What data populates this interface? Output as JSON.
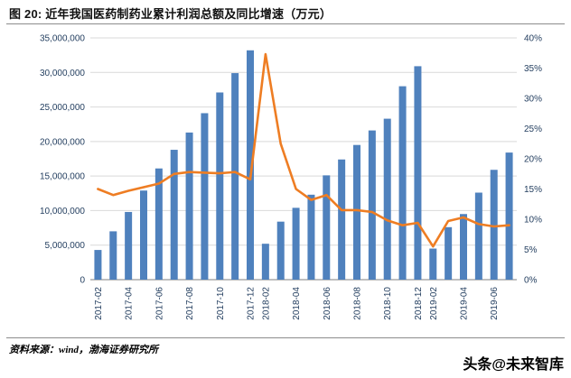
{
  "header": {
    "title": "图 20: 近年我国医药制药业累计利润总额及同比增速（万元）"
  },
  "footer": {
    "source": "资料来源：wind，渤海证券研究所",
    "watermark": "头条@未来智库"
  },
  "colors": {
    "bar": "#4f81bd",
    "line": "#ee7d23",
    "grid": "#d9d9d9",
    "axis_line": "#7f7f7f",
    "axis_text": "#243f60",
    "title_text": "#111111"
  },
  "chart_data": {
    "type": "combo_bar_line",
    "title": "近年我国医药制药业累计利润总额及同比增速（万元）",
    "categories": [
      "2017-02",
      "2017-03",
      "2017-04",
      "2017-05",
      "2017-06",
      "2017-07",
      "2017-08",
      "2017-09",
      "2017-10",
      "2017-11",
      "2017-12",
      "2018-02",
      "2018-03",
      "2018-04",
      "2018-05",
      "2018-06",
      "2018-07",
      "2018-08",
      "2018-09",
      "2018-10",
      "2018-11",
      "2018-12",
      "2019-02",
      "2019-03",
      "2019-04",
      "2019-05",
      "2019-06",
      "2019-07"
    ],
    "x_tick_labels": [
      "2017-02",
      "2017-04",
      "2017-06",
      "2017-08",
      "2017-10",
      "2017-12",
      "2018-02",
      "2018-04",
      "2018-06",
      "2018-08",
      "2018-10",
      "2018-12",
      "2019-02",
      "2019-04",
      "2019-06"
    ],
    "series": [
      {
        "name": "累计利润总额（万元）",
        "chart_type": "bar",
        "axis": "left",
        "values": [
          4300000,
          7000000,
          9800000,
          12900000,
          16100000,
          18800000,
          21300000,
          24100000,
          27100000,
          29900000,
          33200000,
          5200000,
          8400000,
          10400000,
          12300000,
          15100000,
          17400000,
          19500000,
          21600000,
          23300000,
          28000000,
          30900000,
          4500000,
          7600000,
          9500000,
          12600000,
          15900000,
          18400000
        ]
      },
      {
        "name": "同比增速",
        "chart_type": "line",
        "axis": "right",
        "values": [
          15.0,
          14.0,
          14.7,
          15.3,
          15.9,
          17.5,
          17.8,
          17.7,
          17.6,
          17.8,
          16.6,
          37.3,
          22.5,
          15.0,
          13.2,
          14.0,
          11.5,
          11.5,
          11.2,
          9.8,
          9.0,
          9.4,
          5.5,
          9.7,
          10.3,
          9.2,
          8.8,
          9.0
        ]
      }
    ],
    "left_axis": {
      "min": 0,
      "max": 35000000,
      "step": 5000000,
      "tick_labels": [
        "0",
        "5,000,000",
        "10,000,000",
        "15,000,000",
        "20,000,000",
        "25,000,000",
        "30,000,000",
        "35,000,000"
      ]
    },
    "right_axis": {
      "min": 0,
      "max": 40,
      "step": 5,
      "unit": "%",
      "tick_labels": [
        "0%",
        "5%",
        "10%",
        "15%",
        "20%",
        "25%",
        "30%",
        "35%",
        "40%"
      ]
    },
    "grid": true,
    "legend": "none"
  }
}
